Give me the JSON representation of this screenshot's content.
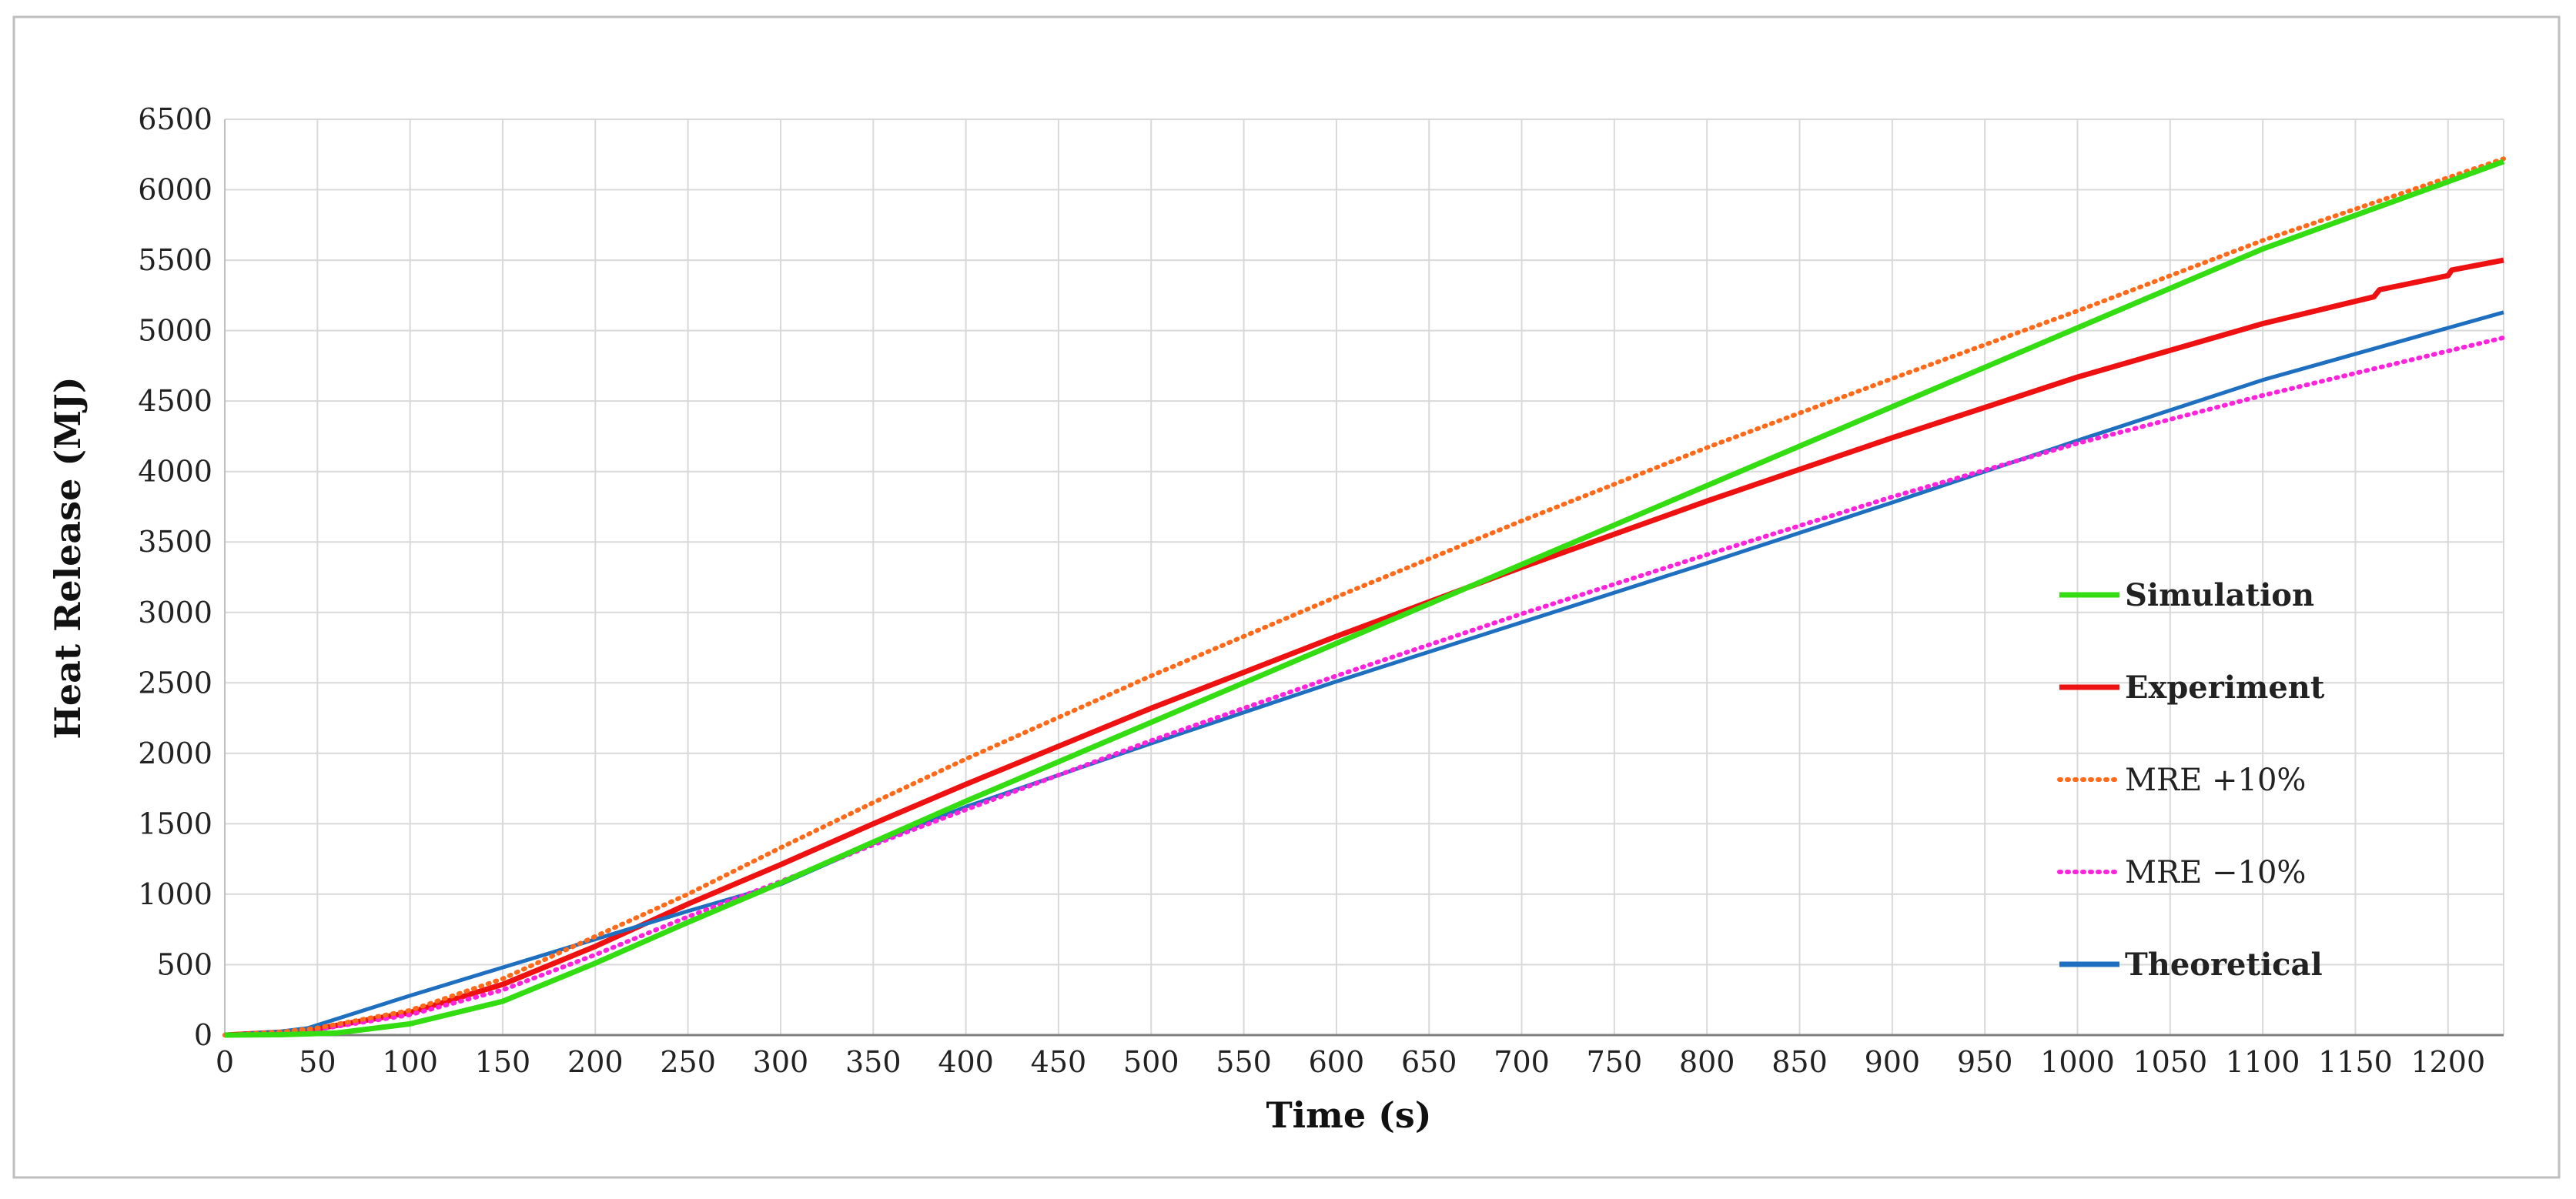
{
  "chart_data": {
    "type": "line",
    "title": "",
    "xlabel": "Time (s)",
    "ylabel": "Heat Release (MJ)",
    "xlim": [
      0,
      1230
    ],
    "ylim": [
      0,
      6500
    ],
    "grid": true,
    "legend_position": "right",
    "x_ticks": [
      0,
      50,
      100,
      150,
      200,
      250,
      300,
      350,
      400,
      450,
      500,
      550,
      600,
      650,
      700,
      750,
      800,
      850,
      900,
      950,
      1000,
      1050,
      1100,
      1150,
      1200
    ],
    "y_ticks": [
      0,
      500,
      1000,
      1500,
      2000,
      2500,
      3000,
      3500,
      4000,
      4500,
      5000,
      5500,
      6000,
      6500
    ],
    "x_tick_labels": [
      "0",
      "50",
      "100",
      "150",
      "200",
      "250",
      "300",
      "350",
      "400",
      "450",
      "500",
      "550",
      "600",
      "650",
      "700",
      "750",
      "800",
      "850",
      "900",
      "950",
      "1000",
      "1050",
      "1100",
      "1150",
      "1200"
    ],
    "y_tick_labels": [
      "0",
      "500",
      "1000",
      "1500",
      "2000",
      "2500",
      "3000",
      "3500",
      "4000",
      "4500",
      "5000",
      "5500",
      "6000",
      "6500"
    ],
    "series": [
      {
        "name": "Simulation",
        "color": "#33dd11",
        "style": "solid",
        "bold_label": true,
        "x": [
          0,
          30,
          60,
          100,
          150,
          200,
          250,
          300,
          350,
          400,
          500,
          600,
          700,
          800,
          900,
          1000,
          1100,
          1230
        ],
        "y": [
          0,
          3,
          15,
          80,
          240,
          510,
          800,
          1080,
          1370,
          1660,
          2220,
          2780,
          3340,
          3900,
          4460,
          5020,
          5580,
          6200
        ]
      },
      {
        "name": "Experiment",
        "color": "#ee1111",
        "style": "solid",
        "bold_label": true,
        "x": [
          0,
          30,
          50,
          100,
          150,
          200,
          250,
          300,
          350,
          400,
          500,
          600,
          700,
          800,
          900,
          1000,
          1100,
          1160,
          1163,
          1200,
          1202,
          1230
        ],
        "y": [
          0,
          20,
          45,
          160,
          360,
          630,
          930,
          1210,
          1500,
          1780,
          2320,
          2830,
          3320,
          3790,
          4240,
          4670,
          5050,
          5240,
          5290,
          5390,
          5430,
          5500
        ]
      },
      {
        "name": "MRE +10%",
        "color": "#ff6a1a",
        "style": "dotted",
        "bold_label": false,
        "x": [
          0,
          30,
          50,
          100,
          150,
          200,
          250,
          300,
          350,
          400,
          500,
          600,
          700,
          800,
          900,
          1000,
          1100,
          1230
        ],
        "y": [
          0,
          22,
          50,
          176,
          400,
          700,
          1000,
          1330,
          1650,
          1960,
          2550,
          3110,
          3650,
          4170,
          4660,
          5140,
          5640,
          6220
        ]
      },
      {
        "name": "MRE −10%",
        "color": "#ff22dd",
        "style": "dotted",
        "bold_label": false,
        "x": [
          0,
          30,
          50,
          100,
          150,
          200,
          250,
          300,
          350,
          400,
          500,
          600,
          700,
          800,
          900,
          1000,
          1100,
          1230
        ],
        "y": [
          0,
          18,
          40,
          144,
          320,
          570,
          840,
          1090,
          1350,
          1600,
          2090,
          2550,
          2990,
          3410,
          3820,
          4200,
          4540,
          4950
        ]
      },
      {
        "name": "Theoretical",
        "color": "#1f6fc0",
        "style": "solid",
        "bold_label": true,
        "x": [
          0,
          30,
          45,
          100,
          150,
          200,
          250,
          300,
          350,
          400,
          500,
          600,
          700,
          800,
          900,
          1000,
          1100,
          1230
        ],
        "y": [
          0,
          25,
          50,
          280,
          480,
          680,
          880,
          1070,
          1360,
          1620,
          2070,
          2510,
          2930,
          3350,
          3780,
          4220,
          4650,
          5130
        ]
      }
    ]
  }
}
